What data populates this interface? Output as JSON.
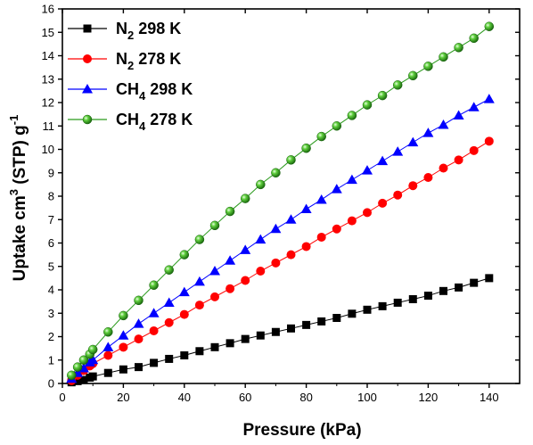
{
  "chart_data": {
    "type": "scatter",
    "title": "",
    "xlabel": "Pressure (kPa)",
    "ylabel": {
      "pre": "Uptake cm",
      "sup": "3",
      "mid": " (STP) g",
      "sup2": "-1"
    },
    "xlim": [
      0,
      150
    ],
    "ylim": [
      0,
      16
    ],
    "xticks": [
      0,
      20,
      40,
      60,
      80,
      100,
      120,
      140
    ],
    "yticks": [
      0,
      1,
      2,
      3,
      4,
      5,
      6,
      7,
      8,
      9,
      10,
      11,
      12,
      13,
      14,
      15,
      16
    ],
    "grid": false,
    "legend_position": "top-left",
    "series": [
      {
        "label_main": "N",
        "label_sub": "2",
        "label_rest": " 298 K",
        "color": "#000000",
        "marker": "square",
        "x": [
          3,
          5,
          7,
          9,
          10,
          15,
          20,
          25,
          30,
          35,
          40,
          45,
          50,
          55,
          60,
          65,
          70,
          75,
          80,
          85,
          90,
          95,
          100,
          105,
          110,
          115,
          120,
          125,
          130,
          135,
          140
        ],
        "y": [
          0.05,
          0.1,
          0.15,
          0.25,
          0.3,
          0.45,
          0.6,
          0.7,
          0.88,
          1.05,
          1.2,
          1.38,
          1.55,
          1.72,
          1.9,
          2.05,
          2.2,
          2.35,
          2.5,
          2.65,
          2.8,
          2.98,
          3.15,
          3.3,
          3.45,
          3.6,
          3.75,
          3.95,
          4.1,
          4.3,
          4.5
        ]
      },
      {
        "label_main": "N",
        "label_sub": "2",
        "label_rest": " 278 K",
        "color": "#ff0000",
        "marker": "circle",
        "x": [
          3,
          5,
          7,
          9,
          10,
          15,
          20,
          25,
          30,
          35,
          40,
          45,
          50,
          55,
          60,
          65,
          70,
          75,
          80,
          85,
          90,
          95,
          100,
          105,
          110,
          115,
          120,
          125,
          130,
          135,
          140
        ],
        "y": [
          0.12,
          0.35,
          0.55,
          0.75,
          0.85,
          1.2,
          1.55,
          1.9,
          2.25,
          2.6,
          2.95,
          3.35,
          3.7,
          4.05,
          4.4,
          4.8,
          5.15,
          5.5,
          5.85,
          6.25,
          6.6,
          6.95,
          7.3,
          7.7,
          8.05,
          8.45,
          8.8,
          9.2,
          9.55,
          9.95,
          10.35
        ]
      },
      {
        "label_main": "CH",
        "label_sub": "4",
        "label_rest": " 298 K",
        "color": "#0000ff",
        "marker": "triangle",
        "x": [
          3,
          5,
          7,
          9,
          10,
          15,
          20,
          25,
          30,
          35,
          40,
          45,
          50,
          55,
          60,
          65,
          70,
          75,
          80,
          85,
          90,
          95,
          100,
          105,
          110,
          115,
          120,
          125,
          130,
          135,
          140
        ],
        "y": [
          0.2,
          0.45,
          0.65,
          0.9,
          1.0,
          1.55,
          2.05,
          2.55,
          3.0,
          3.45,
          3.9,
          4.35,
          4.8,
          5.25,
          5.7,
          6.15,
          6.6,
          7.0,
          7.45,
          7.85,
          8.3,
          8.7,
          9.1,
          9.5,
          9.9,
          10.3,
          10.7,
          11.05,
          11.45,
          11.8,
          12.15
        ]
      },
      {
        "label_main": "CH",
        "label_sub": "4",
        "label_rest": " 278 K",
        "color": "#2a9a1c",
        "marker": "ball",
        "x": [
          3,
          5,
          7,
          9,
          10,
          15,
          20,
          25,
          30,
          35,
          40,
          45,
          50,
          55,
          60,
          65,
          70,
          75,
          80,
          85,
          90,
          95,
          100,
          105,
          110,
          115,
          120,
          125,
          130,
          135,
          140
        ],
        "y": [
          0.35,
          0.7,
          1.0,
          1.25,
          1.45,
          2.2,
          2.9,
          3.55,
          4.2,
          4.85,
          5.5,
          6.15,
          6.75,
          7.35,
          7.9,
          8.5,
          9.0,
          9.55,
          10.05,
          10.55,
          11.0,
          11.45,
          11.9,
          12.3,
          12.75,
          13.15,
          13.55,
          13.95,
          14.35,
          14.75,
          15.25
        ]
      }
    ]
  }
}
